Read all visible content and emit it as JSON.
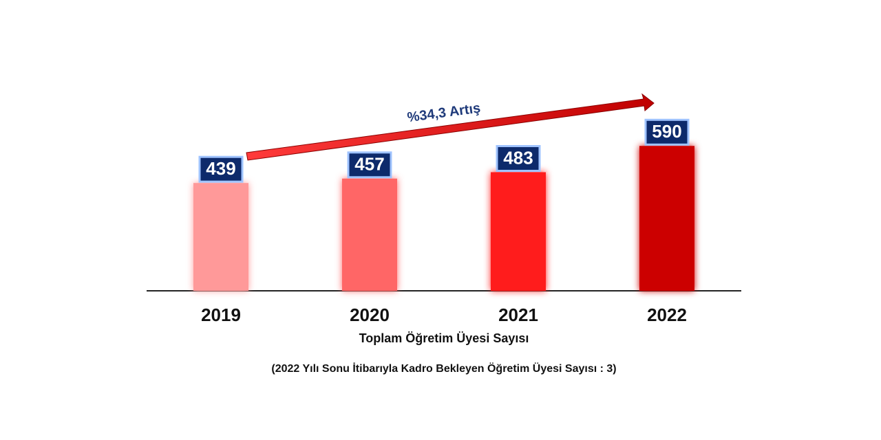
{
  "chart_data": {
    "type": "bar",
    "categories": [
      "2019",
      "2020",
      "2021",
      "2022"
    ],
    "values": [
      439,
      457,
      483,
      590
    ],
    "colors": [
      "#ff9999",
      "#ff6666",
      "#ff1a1a",
      "#cc0000"
    ],
    "ylim": [
      0,
      700
    ],
    "x_label": "Toplam Öğretim Üyesi Sayısı",
    "annotation": "%34,3 Artış",
    "note": "(2022 Yılı Sonu İtibarıyla Kadro Bekleyen Öğretim Üyesi Sayısı :  3)"
  }
}
